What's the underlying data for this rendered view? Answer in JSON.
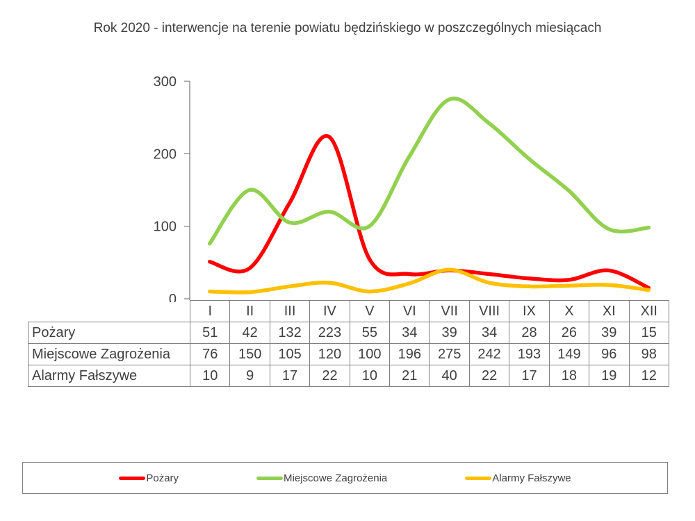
{
  "title": "Rok 2020 - interwencje na terenie powiatu będzińskiego w poszczególnych miesiącach",
  "chart_data": {
    "type": "line",
    "smooth": true,
    "grid": false,
    "title": "Rok 2020 - interwencje na terenie powiatu będzińskiego w poszczególnych miesiącach",
    "xlabel": "",
    "ylabel": "",
    "ylim": [
      0,
      300
    ],
    "yticks": [
      0,
      100,
      200,
      300
    ],
    "legend_position": "bottom",
    "categories": [
      "I",
      "II",
      "III",
      "IV",
      "V",
      "VI",
      "VII",
      "VIII",
      "IX",
      "X",
      "XI",
      "XII"
    ],
    "series": [
      {
        "id": "pozary",
        "name": "Pożary",
        "color": "#FF0000",
        "values": [
          51,
          42,
          132,
          223,
          55,
          34,
          39,
          34,
          28,
          26,
          39,
          15
        ]
      },
      {
        "id": "miejscowe-zagrozenia",
        "name": "Miejscowe Zagrożenia",
        "color": "#92D050",
        "values": [
          76,
          150,
          105,
          120,
          100,
          196,
          275,
          242,
          193,
          149,
          96,
          98
        ]
      },
      {
        "id": "alarmy-falszywe",
        "name": "Alarmy Fałszywe",
        "color": "#FFC000",
        "values": [
          10,
          9,
          17,
          22,
          10,
          21,
          40,
          22,
          17,
          18,
          19,
          12
        ]
      }
    ]
  },
  "colors": {
    "axis": "#808080",
    "table_border": "#808080",
    "text": "#404040",
    "background": "#FFFFFF"
  }
}
